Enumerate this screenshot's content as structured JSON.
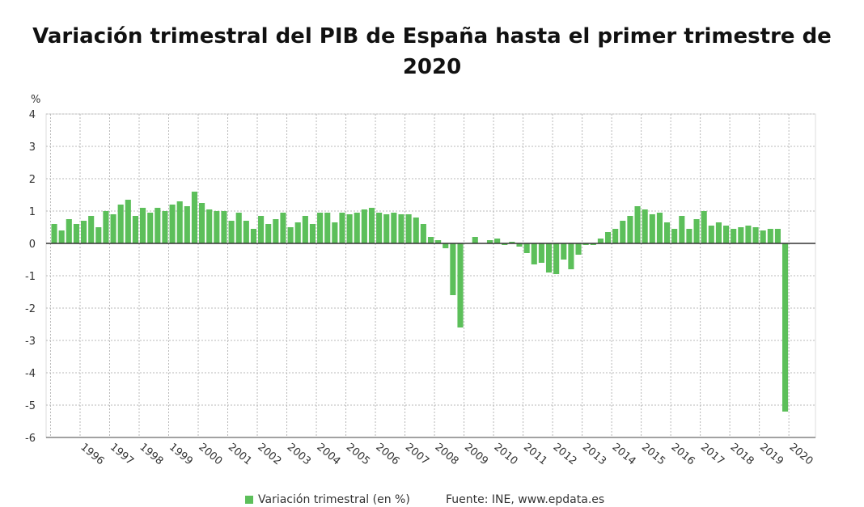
{
  "colors": {
    "bar": "#5cbf5a",
    "grid": "#b8b8b8",
    "zero_line": "#333333",
    "axis": "#444444"
  },
  "chart_data": {
    "type": "bar",
    "title_line1": "Variación trimestral del PIB de España hasta el primer trimestre de",
    "title_line2": "2020",
    "ylabel": "%",
    "ylim": [
      -6,
      4
    ],
    "yticks": [
      "4",
      "3",
      "2",
      "1",
      "0",
      "-1",
      "-2",
      "-3",
      "-4",
      "-5",
      "-6"
    ],
    "grid": true,
    "legend": "bottom",
    "year_labels": [
      "1996",
      "1997",
      "1998",
      "1999",
      "2000",
      "2001",
      "2002",
      "2003",
      "2004",
      "2005",
      "2006",
      "2007",
      "2008",
      "2009",
      "2010",
      "2011",
      "2012",
      "2013",
      "2014",
      "2015",
      "2016",
      "2017",
      "2018",
      "2019",
      "2020"
    ],
    "series": [
      {
        "name": "Variación trimestral (en %)",
        "values": [
          0.6,
          0.4,
          0.75,
          0.6,
          0.7,
          0.85,
          0.5,
          1.0,
          0.9,
          1.2,
          1.35,
          0.85,
          1.1,
          0.95,
          1.1,
          1.0,
          1.2,
          1.3,
          1.15,
          1.6,
          1.25,
          1.05,
          1.0,
          1.0,
          0.7,
          0.95,
          0.7,
          0.45,
          0.85,
          0.6,
          0.75,
          0.95,
          0.5,
          0.65,
          0.85,
          0.6,
          0.95,
          0.95,
          0.65,
          0.95,
          0.9,
          0.95,
          1.05,
          1.1,
          0.95,
          0.9,
          0.95,
          0.9,
          0.9,
          0.8,
          0.6,
          0.2,
          0.1,
          -0.15,
          -1.6,
          -2.6,
          0.0,
          0.2,
          0.0,
          0.1,
          0.15,
          -0.05,
          0.05,
          -0.1,
          -0.3,
          -0.65,
          -0.6,
          -0.9,
          -0.95,
          -0.5,
          -0.8,
          -0.35,
          -0.05,
          -0.05,
          0.15,
          0.35,
          0.45,
          0.7,
          0.85,
          1.15,
          1.05,
          0.9,
          0.95,
          0.65,
          0.45,
          0.85,
          0.45,
          0.75,
          1.0,
          0.55,
          0.65,
          0.55,
          0.45,
          0.5,
          0.55,
          0.5,
          0.4,
          0.45,
          0.45,
          -5.2
        ]
      }
    ]
  },
  "legend": {
    "label": "Variación trimestral (en %)"
  },
  "source": "Fuente: INE, www.epdata.es"
}
